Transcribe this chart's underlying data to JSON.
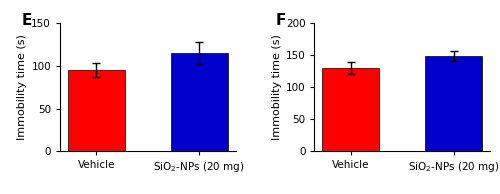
{
  "panels": [
    {
      "label": "E",
      "ylabel": "Immobility time (s)",
      "ylim": [
        0,
        150
      ],
      "yticks": [
        0,
        50,
        100,
        150
      ],
      "categories": [
        "Vehicle",
        "SiO$_2$-NPs (20 mg)"
      ],
      "values": [
        95,
        115
      ],
      "errors": [
        8,
        13
      ],
      "bar_colors": [
        "#ff0000",
        "#0000cc"
      ],
      "bar_width": 0.55
    },
    {
      "label": "F",
      "ylabel": "Immobility time (s)",
      "ylim": [
        0,
        200
      ],
      "yticks": [
        0,
        50,
        100,
        150,
        200
      ],
      "categories": [
        "Vehicle",
        "SiO$_2$-NPs (20 mg)"
      ],
      "values": [
        130,
        149
      ],
      "errors": [
        10,
        8
      ],
      "bar_colors": [
        "#ff0000",
        "#0000cc"
      ],
      "bar_width": 0.55
    }
  ],
  "background_color": "#ffffff",
  "tick_fontsize": 7.5,
  "label_fontsize": 8.0,
  "panel_label_fontsize": 11,
  "error_capsize": 3,
  "error_linewidth": 1.0,
  "bar_edgecolor": "#000000",
  "bar_linewidth": 0.5
}
